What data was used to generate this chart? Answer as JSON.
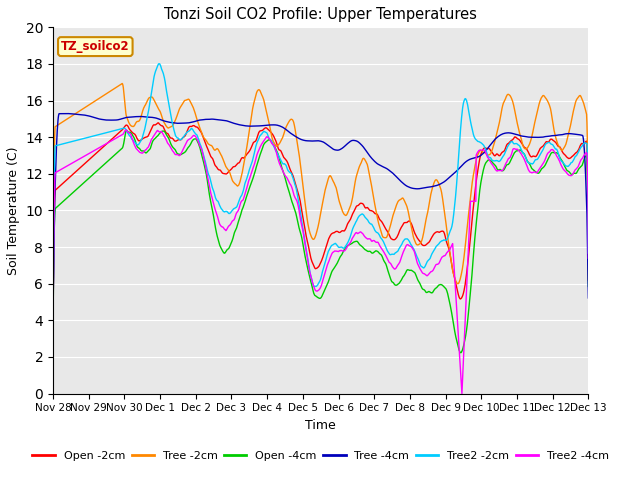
{
  "title": "Tonzi Soil CO2 Profile: Upper Temperatures",
  "xlabel": "Time",
  "ylabel": "Soil Temperature (C)",
  "ylim": [
    0,
    20
  ],
  "yticks": [
    0,
    2,
    4,
    6,
    8,
    10,
    12,
    14,
    16,
    18,
    20
  ],
  "xtick_labels": [
    "Nov 28",
    "Nov 29",
    "Nov 30",
    "Dec 1",
    "Dec 2",
    "Dec 3",
    "Dec 4",
    "Dec 5",
    "Dec 6",
    "Dec 7",
    "Dec 8",
    "Dec 9",
    "Dec 10",
    "Dec 11",
    "Dec 12",
    "Dec 13"
  ],
  "series": {
    "Open -2cm": {
      "color": "#ff0000"
    },
    "Tree -2cm": {
      "color": "#ff8800"
    },
    "Open -4cm": {
      "color": "#00cc00"
    },
    "Tree -4cm": {
      "color": "#0000bb"
    },
    "Tree2 -2cm": {
      "color": "#00ccff"
    },
    "Tree2 -4cm": {
      "color": "#ff00ff"
    }
  },
  "label_box": {
    "text": "TZ_soilco2",
    "facecolor": "#ffffcc",
    "edgecolor": "#cc8800",
    "textcolor": "#cc0000"
  },
  "bg_color": "#e8e8e8",
  "grid_color": "#ffffff",
  "figsize": [
    6.4,
    4.8
  ],
  "dpi": 100
}
